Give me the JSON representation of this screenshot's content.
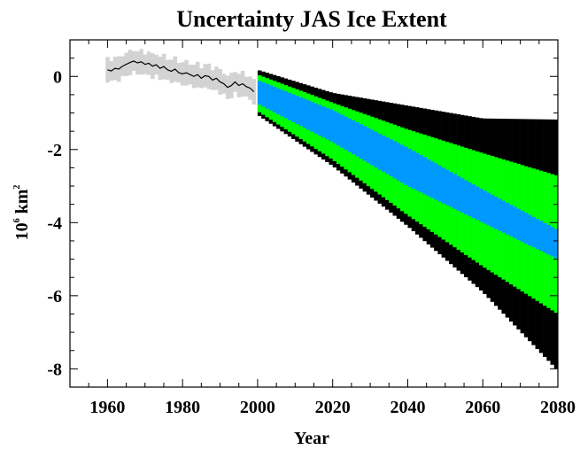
{
  "chart_data": {
    "type": "area",
    "title": "Uncertainty JAS Ice Extent",
    "xlabel": "Year",
    "ylabel_base": "10",
    "ylabel_exp": "6",
    "ylabel_unit": "km",
    "ylabel_unit_exp": "2",
    "xlim": [
      1950,
      2080
    ],
    "ylim": [
      -8.5,
      1.0
    ],
    "xticks": [
      1960,
      1980,
      2000,
      2020,
      2040,
      2060,
      2080
    ],
    "yticks": [
      0,
      -2,
      -4,
      -6,
      -8
    ],
    "grid": false,
    "observed": {
      "years": [
        1960,
        1961,
        1962,
        1963,
        1964,
        1965,
        1966,
        1967,
        1968,
        1969,
        1970,
        1971,
        1972,
        1973,
        1974,
        1975,
        1976,
        1977,
        1978,
        1979,
        1980,
        1981,
        1982,
        1983,
        1984,
        1985,
        1986,
        1987,
        1988,
        1989,
        1990,
        1991,
        1992,
        1993,
        1994,
        1995,
        1996,
        1997,
        1998,
        1999
      ],
      "values": [
        0.18,
        0.15,
        0.22,
        0.2,
        0.28,
        0.33,
        0.38,
        0.42,
        0.37,
        0.4,
        0.33,
        0.36,
        0.28,
        0.32,
        0.22,
        0.27,
        0.18,
        0.14,
        0.2,
        0.1,
        0.07,
        0.1,
        0.05,
        0.0,
        0.05,
        -0.05,
        0.02,
        0.0,
        -0.1,
        -0.05,
        -0.15,
        -0.2,
        -0.3,
        -0.25,
        -0.15,
        -0.25,
        -0.2,
        -0.28,
        -0.32,
        -0.42
      ],
      "band_halfwidth": 0.3,
      "line_color": "#000000",
      "band_color": "#d3d3d3"
    },
    "projection": {
      "years": [
        2000,
        2020,
        2040,
        2060,
        2080
      ],
      "bands": [
        {
          "color": "#000000",
          "upper": [
            0.18,
            -0.45,
            -0.8,
            -1.15,
            -1.18
          ],
          "lower": [
            -1.05,
            -2.45,
            -4.1,
            -5.9,
            -8.05
          ]
        },
        {
          "color": "#00ff00",
          "upper": [
            0.05,
            -0.72,
            -1.45,
            -2.1,
            -2.72
          ],
          "lower": [
            -0.95,
            -2.28,
            -3.8,
            -5.2,
            -6.5
          ]
        },
        {
          "color": "#0099ff",
          "upper": [
            -0.1,
            -0.92,
            -1.95,
            -3.1,
            -4.2
          ],
          "lower": [
            -0.75,
            -1.8,
            -3.0,
            -4.0,
            -5.0
          ]
        }
      ]
    }
  }
}
